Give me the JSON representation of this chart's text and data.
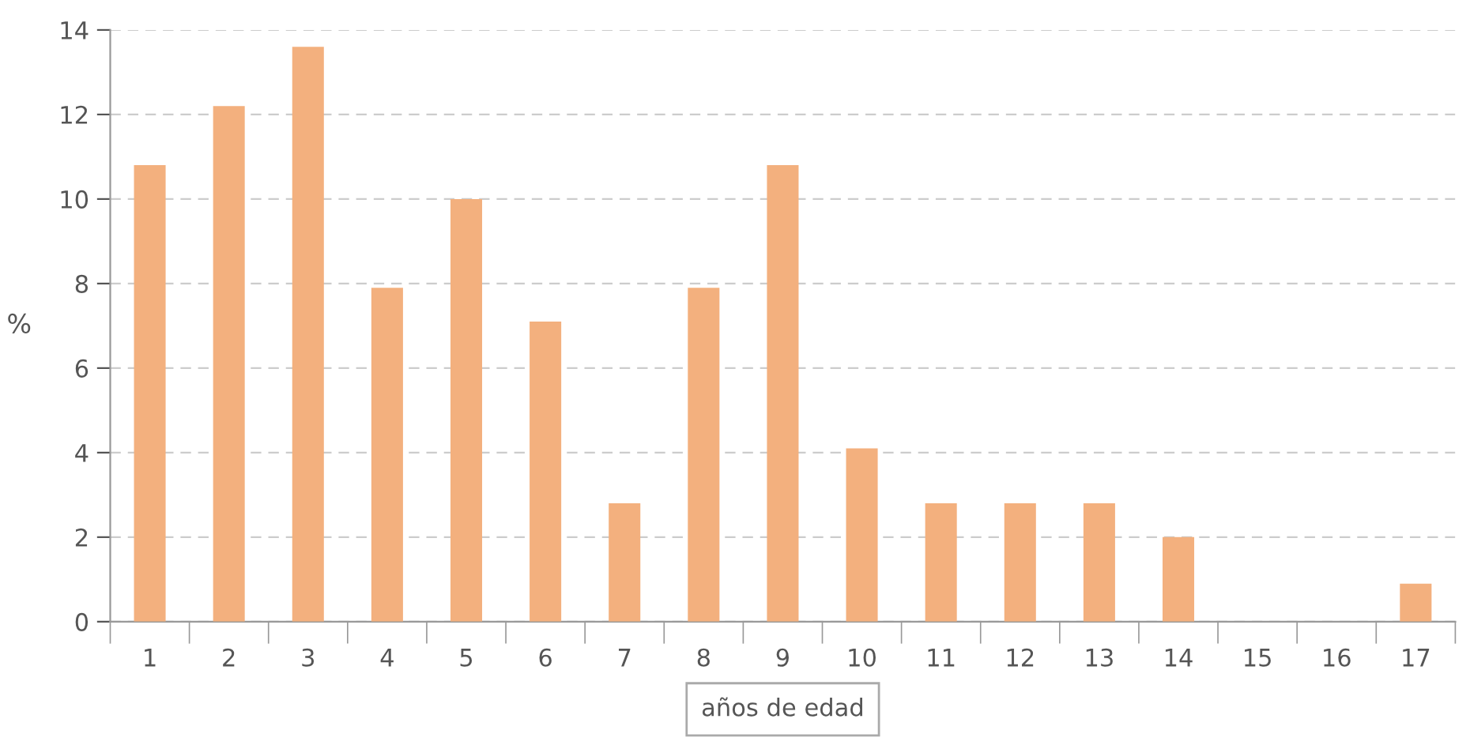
{
  "chart_data": {
    "type": "bar",
    "xlabel": "años de edad",
    "ylabel": "%",
    "categories": [
      "1",
      "2",
      "3",
      "4",
      "5",
      "6",
      "7",
      "8",
      "9",
      "10",
      "11",
      "12",
      "13",
      "14",
      "15",
      "16",
      "17"
    ],
    "values": [
      10.8,
      12.2,
      13.6,
      7.9,
      10.0,
      7.1,
      2.8,
      7.9,
      10.8,
      4.1,
      2.8,
      2.8,
      2.8,
      2.0,
      0,
      0,
      0.9
    ],
    "color": "#f3b07e",
    "ylim": [
      0,
      14
    ],
    "yticks": [
      0,
      2,
      4,
      6,
      8,
      10,
      12,
      14
    ],
    "grid": "y",
    "legend": false
  }
}
